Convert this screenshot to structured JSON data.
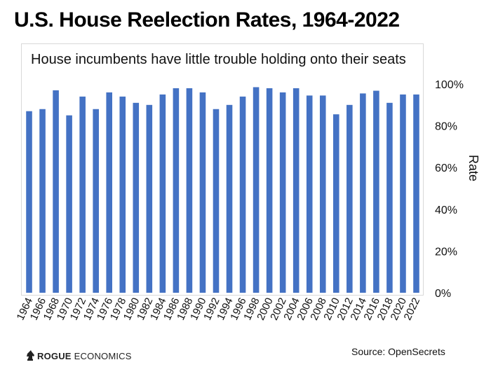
{
  "title": "U.S. House Reelection Rates, 1964-2022",
  "chart_data": {
    "type": "bar",
    "subtitle": "House incumbents have little trouble holding onto their seats",
    "ylabel": "Rate",
    "xlabel": "",
    "ylim": [
      0,
      100
    ],
    "y_ticks": [
      "0%",
      "20%",
      "40%",
      "60%",
      "80%",
      "100%"
    ],
    "y_tick_values": [
      0,
      20,
      40,
      60,
      80,
      100
    ],
    "grid": false,
    "bar_color": "#4472c4",
    "categories": [
      "1964",
      "1966",
      "1968",
      "1970",
      "1972",
      "1974",
      "1976",
      "1978",
      "1980",
      "1982",
      "1984",
      "1986",
      "1988",
      "1990",
      "1992",
      "1994",
      "1996",
      "1998",
      "2000",
      "2002",
      "2004",
      "2006",
      "2008",
      "2010",
      "2012",
      "2014",
      "2016",
      "2018",
      "2020",
      "2022"
    ],
    "values": [
      87,
      88,
      97,
      85,
      94,
      88,
      96,
      94,
      91,
      90,
      95,
      98,
      98,
      96,
      88,
      90,
      94,
      98.5,
      98,
      96,
      98,
      94.5,
      94.5,
      85.5,
      90,
      95.5,
      96.8,
      91,
      95,
      95
    ]
  },
  "footer": {
    "logo_primary": "ROGUE",
    "logo_secondary": "ECONOMICS",
    "source": "Source: OpenSecrets"
  }
}
